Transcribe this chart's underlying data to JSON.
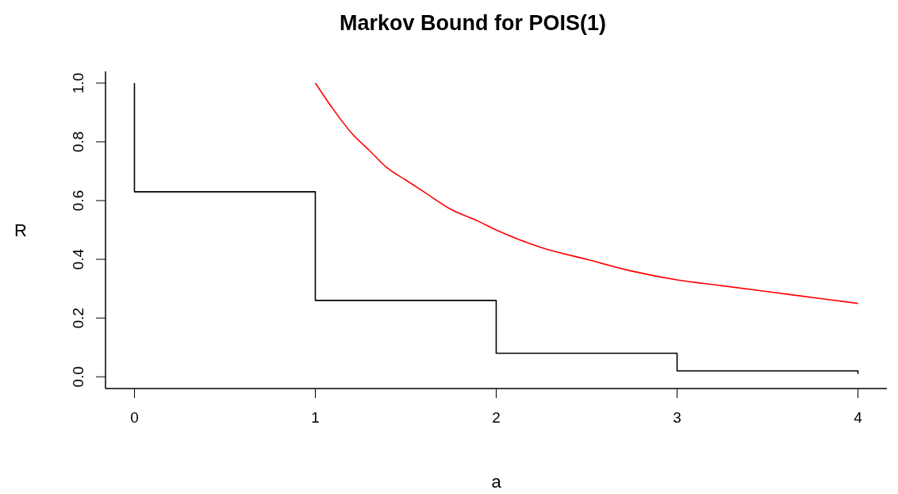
{
  "chart_data": {
    "type": "line",
    "title": "Markov Bound for POIS(1)",
    "xlabel": "a",
    "ylabel": "R",
    "xlim": [
      -0.16,
      4.16
    ],
    "ylim": [
      -0.04,
      1.04
    ],
    "xticks": [
      0,
      1,
      2,
      3,
      4
    ],
    "yticks": [
      {
        "value": 0,
        "label": "0.0"
      },
      0.2,
      0.4,
      0.6,
      0.8,
      {
        "value": 1,
        "label": "1.0"
      }
    ],
    "series": [
      {
        "type": "step",
        "color": "#000000",
        "x": [
          0,
          0,
          1,
          2,
          3,
          4,
          4
        ],
        "values": [
          1,
          0.63,
          0.26,
          0.08,
          0.02,
          0.02,
          0.01
        ]
      },
      {
        "color": "#ff0000",
        "x": [
          1,
          1.1,
          1.2,
          1.3,
          1.4,
          1.5,
          1.6,
          1.75,
          1.9,
          2,
          2.25,
          2.5,
          2.75,
          3,
          3.25,
          3.5,
          3.75,
          4
        ],
        "values": [
          1,
          0.91,
          0.83,
          0.77,
          0.71,
          0.67,
          0.63,
          0.57,
          0.53,
          0.5,
          0.44,
          0.4,
          0.36,
          0.33,
          0.31,
          0.29,
          0.27,
          0.25
        ]
      }
    ]
  }
}
